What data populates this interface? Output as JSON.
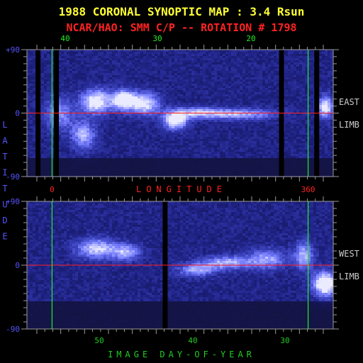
{
  "title": "1988 CORONAL SYNOPTIC MAP : 3.4 Rsun",
  "subtitle": "NCAR/HAO: SMM C/P -- ROTATION # 1798",
  "colors": {
    "title": "#ffff33",
    "subtitle": "#ff2222",
    "axis_label": "#5555ff",
    "top_tick_label": "#22ee22",
    "longitude_label": "#ff2222",
    "day_label": "#22cc22",
    "frame": "#9a9a9a",
    "equator_line": "#ff2020",
    "marker_line": "#22ee22",
    "side_label": "#cccccc"
  },
  "chart_data": [
    {
      "type": "heatmap",
      "name": "east-limb-panel",
      "side_label": [
        "EAST",
        "LIMB"
      ],
      "ylim": [
        -90,
        90
      ],
      "y_ticks": [
        "+90",
        "0",
        "-90"
      ],
      "x_top_ticks": [
        "40",
        "30",
        "20"
      ],
      "x_bottom_ticks": [
        "0",
        "360"
      ],
      "x_bottom_label": "LONGITUDE",
      "equator_latitude": 0,
      "dark_gap_fractions": [
        0.035,
        0.095,
        0.83,
        0.945
      ],
      "marker_fractions": [
        0.082,
        0.918
      ],
      "features": [
        {
          "f": 0.22,
          "lat": 18,
          "w": 0.06,
          "h": 22,
          "i": 0.85
        },
        {
          "f": 0.31,
          "lat": 20,
          "w": 0.05,
          "h": 18,
          "i": 0.9
        },
        {
          "f": 0.38,
          "lat": 15,
          "w": 0.06,
          "h": 20,
          "i": 0.75
        },
        {
          "f": 0.18,
          "lat": -30,
          "w": 0.05,
          "h": 25,
          "i": 0.6
        },
        {
          "f": 0.48,
          "lat": -10,
          "w": 0.05,
          "h": 15,
          "i": 0.85
        },
        {
          "f": 0.55,
          "lat": 2,
          "w": 0.12,
          "h": 10,
          "i": 0.6
        },
        {
          "f": 0.7,
          "lat": 0,
          "w": 0.14,
          "h": 10,
          "i": 0.55
        },
        {
          "f": 0.97,
          "lat": 10,
          "w": 0.03,
          "h": 20,
          "i": 0.85
        },
        {
          "f": 0.1,
          "lat": 0,
          "w": 0.06,
          "h": 30,
          "i": 0.5
        }
      ]
    },
    {
      "type": "heatmap",
      "name": "west-limb-panel",
      "side_label": [
        "WEST",
        "LIMB"
      ],
      "ylim": [
        -90,
        90
      ],
      "y_ticks": [
        "+90",
        "0",
        "-90"
      ],
      "x_bottom_ticks": [
        "50",
        "40",
        "30"
      ],
      "x_bottom_label": "IMAGE DAY-OF-YEAR",
      "equator_latitude": 0,
      "dark_gap_fractions": [
        0.45
      ],
      "marker_fractions": [
        0.082,
        0.918
      ],
      "features": [
        {
          "f": 0.22,
          "lat": 25,
          "w": 0.08,
          "h": 18,
          "i": 0.7
        },
        {
          "f": 0.32,
          "lat": 20,
          "w": 0.06,
          "h": 15,
          "i": 0.6
        },
        {
          "f": 0.55,
          "lat": -5,
          "w": 0.08,
          "h": 12,
          "i": 0.55
        },
        {
          "f": 0.65,
          "lat": 5,
          "w": 0.1,
          "h": 12,
          "i": 0.6
        },
        {
          "f": 0.78,
          "lat": 10,
          "w": 0.08,
          "h": 18,
          "i": 0.55
        },
        {
          "f": 0.97,
          "lat": -25,
          "w": 0.05,
          "h": 22,
          "i": 1.0
        },
        {
          "f": 0.9,
          "lat": 15,
          "w": 0.04,
          "h": 25,
          "i": 0.6
        }
      ]
    }
  ],
  "left_axis_label": "LATITUDE"
}
